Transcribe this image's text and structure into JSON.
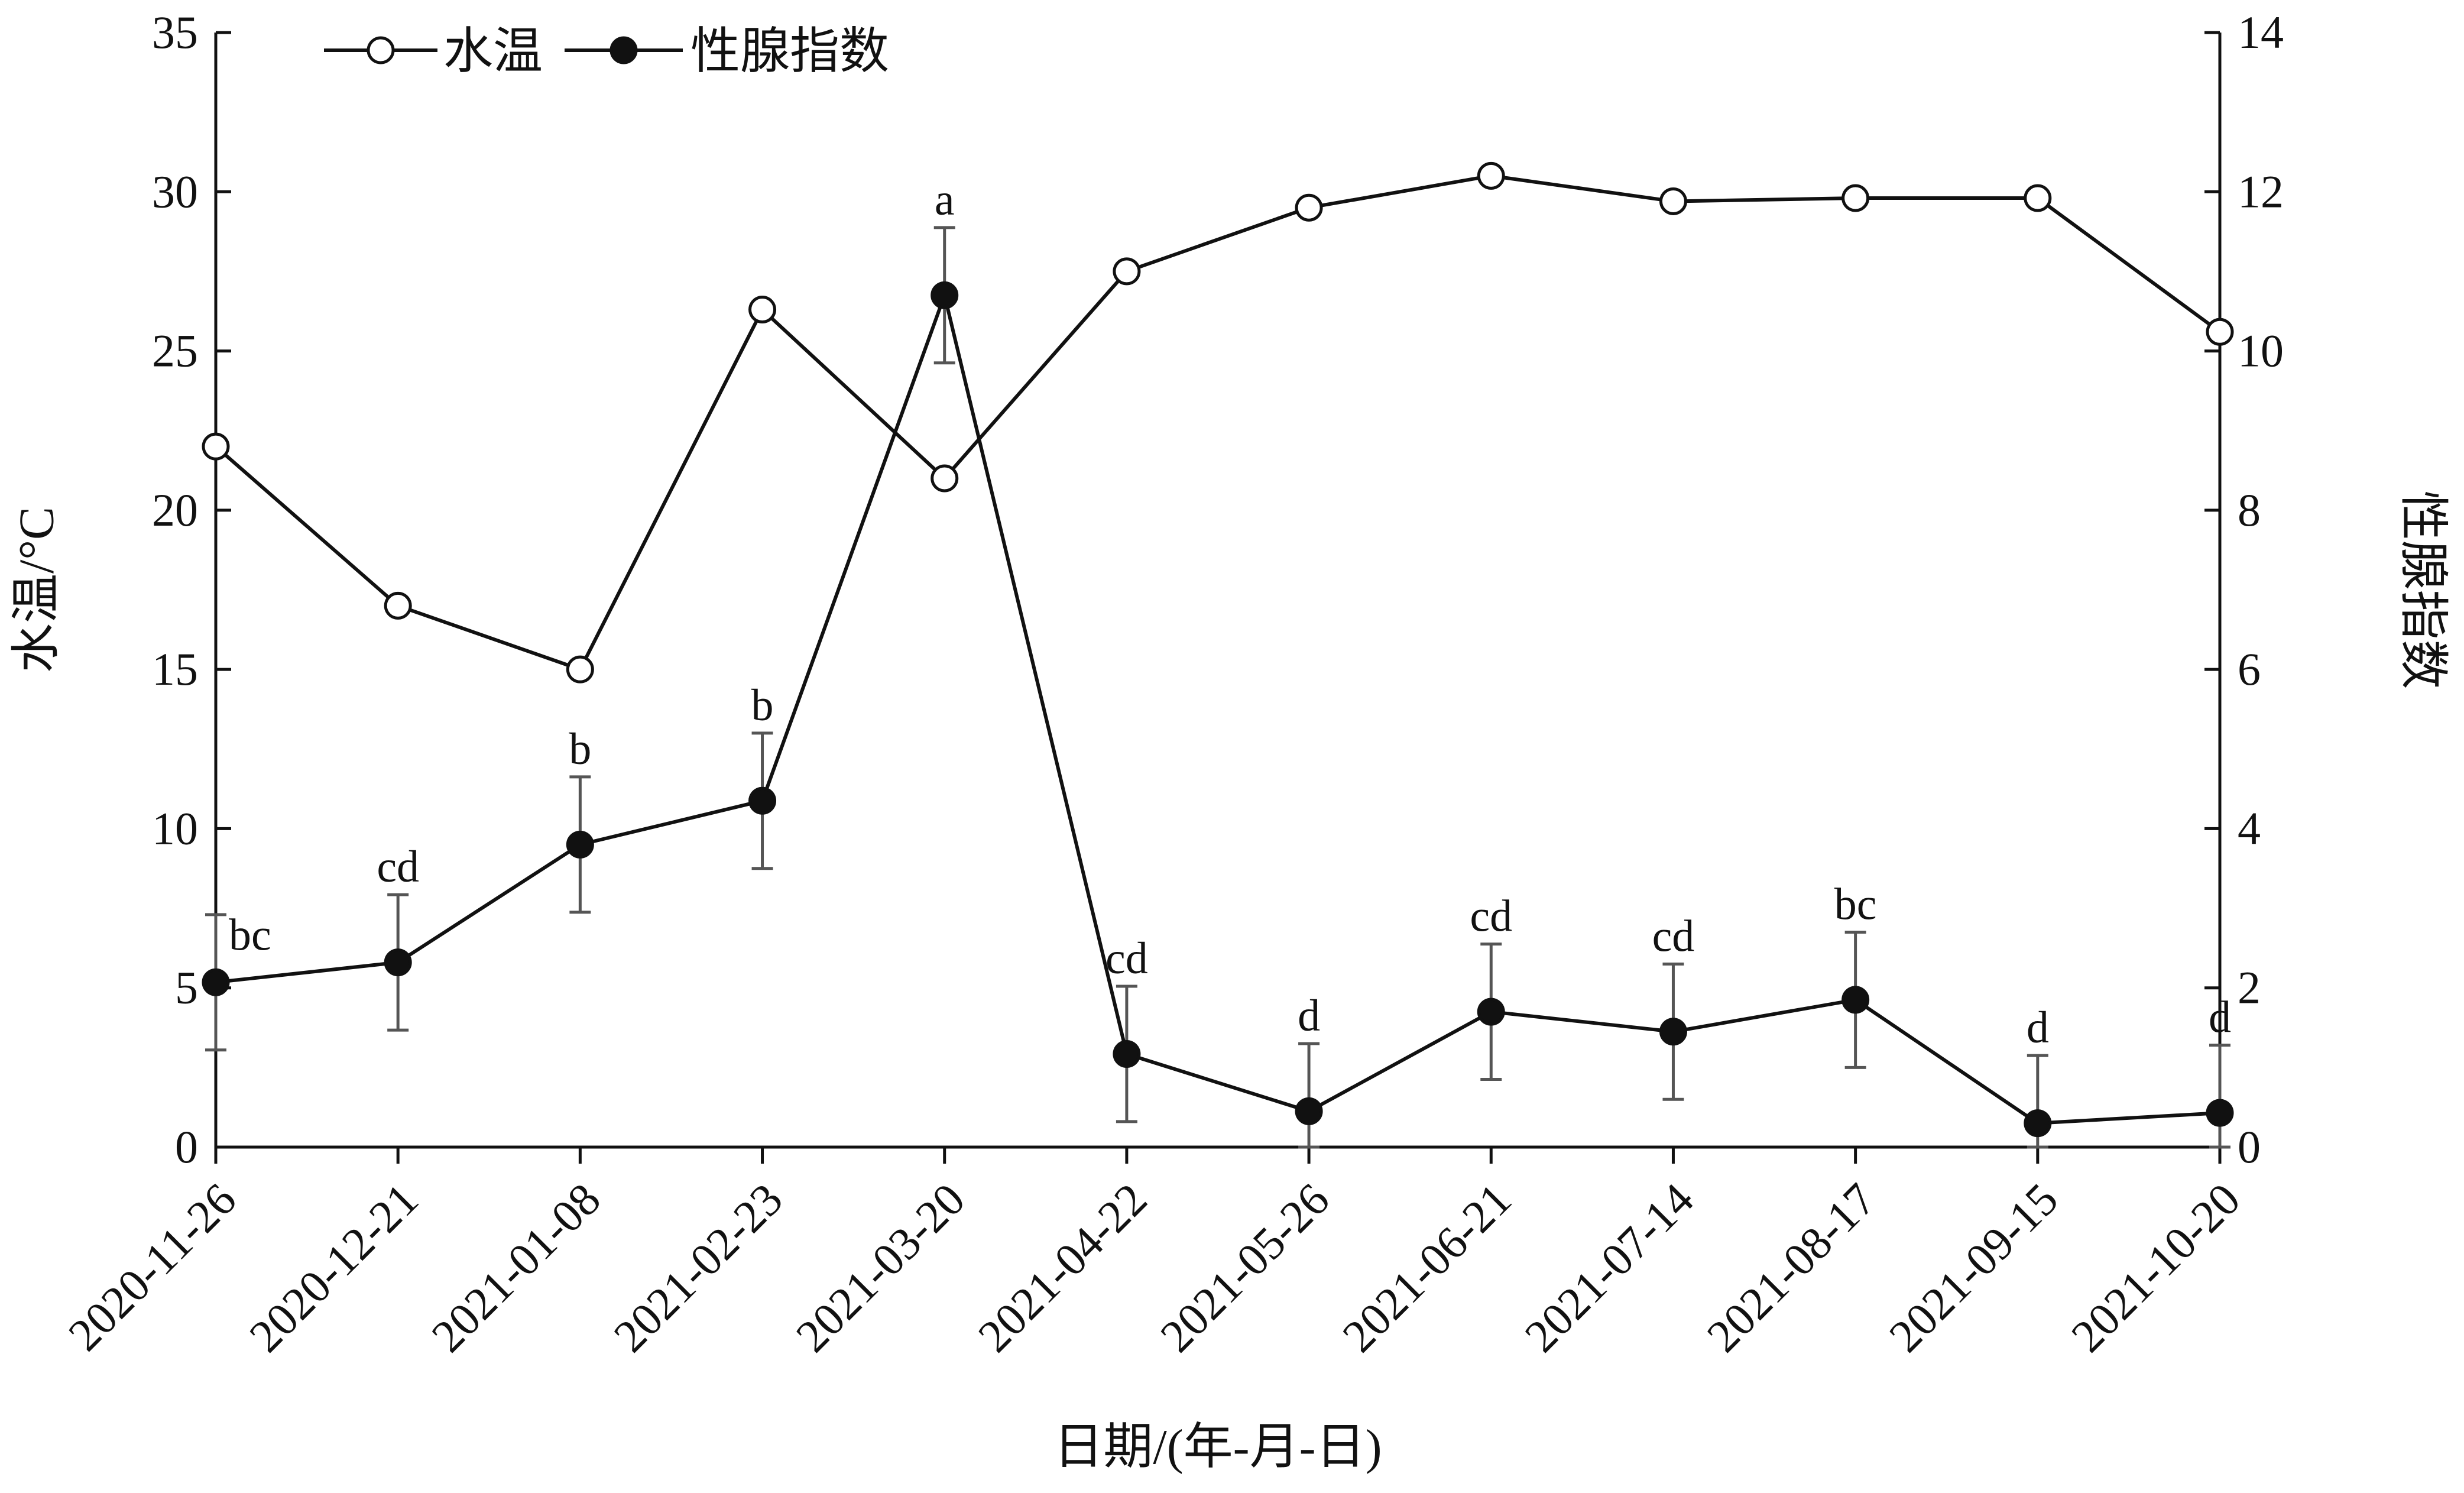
{
  "chart_data": {
    "type": "line",
    "xlabel": "日期/(年-月-日)",
    "ylabel_left": "水温/°C",
    "ylabel_right": "性腺指数",
    "ylim_left": [
      0,
      35
    ],
    "yticks_left": [
      "0",
      "5",
      "10",
      "15",
      "20",
      "25",
      "30",
      "35"
    ],
    "ylim_right": [
      0,
      14
    ],
    "yticks_right": [
      "0",
      "2",
      "4",
      "6",
      "8",
      "10",
      "12",
      "14"
    ],
    "categories": [
      "2020-11-26",
      "2020-12-21",
      "2021-01-08",
      "2021-02-23",
      "2021-03-20",
      "2021-04-22",
      "2021-05-26",
      "2021-06-21",
      "2021-07-14",
      "2021-08-17",
      "2021-09-15",
      "2021-10-20"
    ],
    "legend_position": "top-left",
    "grid": false,
    "series": [
      {
        "name": "水温",
        "axis": "left",
        "marker": "open-circle",
        "values": [
          22.0,
          17.0,
          15.0,
          26.3,
          21.0,
          27.5,
          29.5,
          30.5,
          29.7,
          29.8,
          29.8,
          25.6
        ]
      },
      {
        "name": "性腺指数",
        "axis": "right",
        "marker": "filled-circle",
        "values": [
          2.07,
          2.32,
          3.8,
          4.35,
          10.7,
          1.17,
          0.45,
          1.7,
          1.45,
          1.85,
          0.3,
          0.43
        ],
        "error": [
          0.85,
          0.85,
          0.85,
          0.85,
          0.85,
          0.85,
          0.85,
          0.85,
          0.85,
          0.85,
          0.85,
          0.85
        ],
        "significance": [
          "bc",
          "cd",
          "b",
          "b",
          "a",
          "cd",
          "d",
          "cd",
          "cd",
          "bc",
          "d",
          "d"
        ]
      }
    ]
  }
}
